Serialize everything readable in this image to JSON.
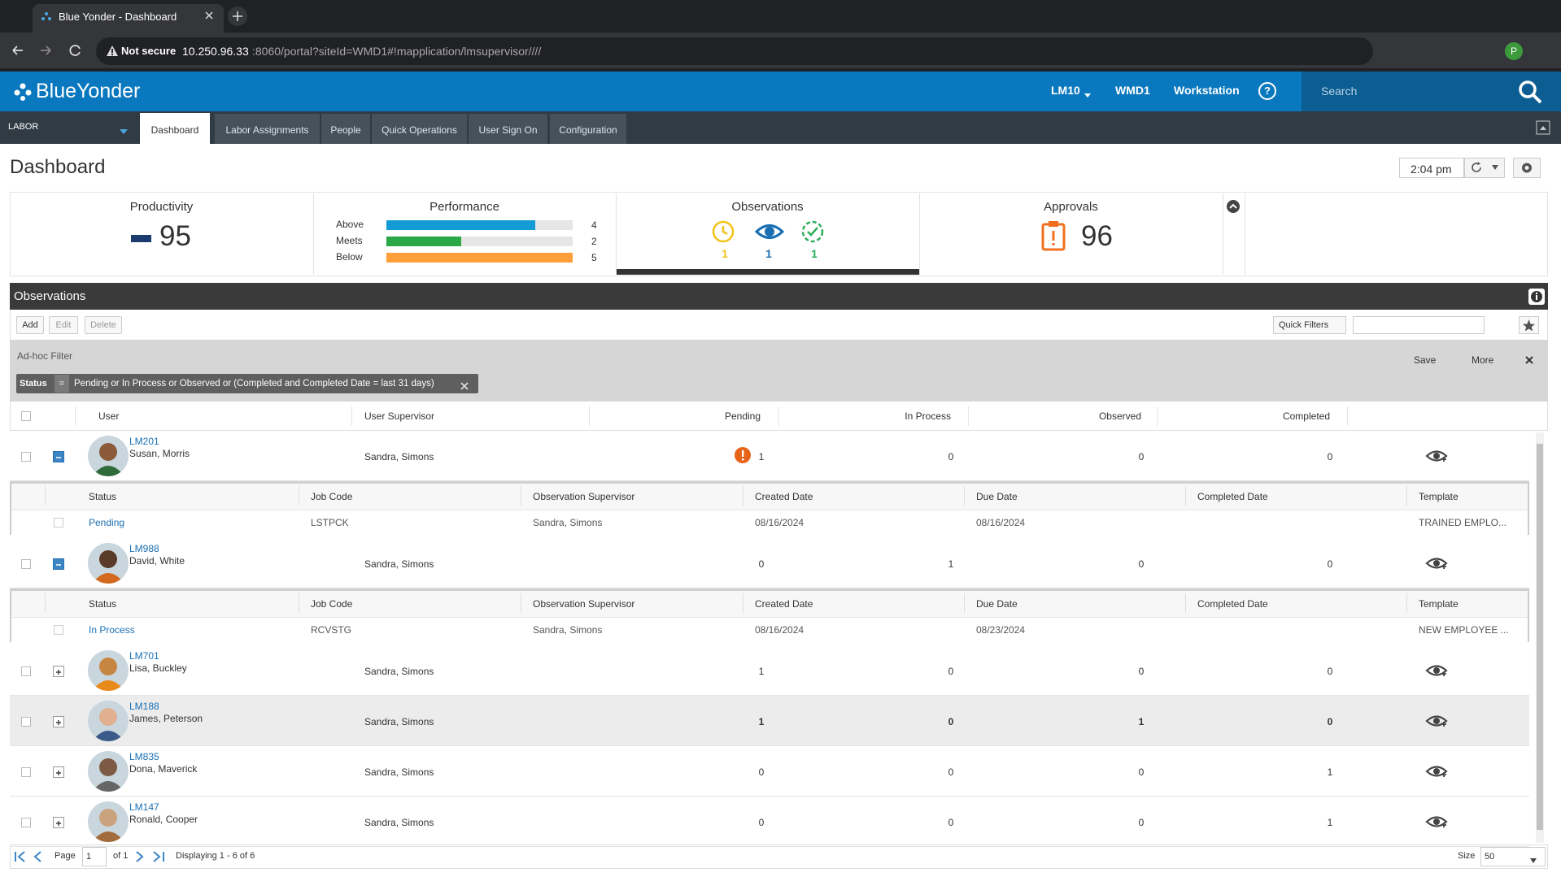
{
  "browser": {
    "tab_title": "Blue Yonder - Dashboard",
    "warning": "Not secure",
    "host": "10.250.96.33",
    "path": ":8060/portal?siteId=WMD1#!mapplication/lmsupervisor////",
    "profile": "P"
  },
  "header": {
    "logo": "BlueYonder",
    "menu": [
      "LM10",
      "WMD1",
      "Workstation"
    ],
    "help": "?",
    "search": "Search"
  },
  "nav": {
    "module": "LABOR",
    "tabs": [
      "Dashboard",
      "Labor Assignments",
      "People",
      "Quick Operations",
      "User Sign On",
      "Configuration"
    ]
  },
  "page_title": "Dashboard",
  "time": "2:04 pm",
  "widgets": {
    "productivity": {
      "title": "Productivity",
      "value": 95
    },
    "performance": {
      "title": "Performance",
      "rows": [
        {
          "label": "Above",
          "value": 4
        },
        {
          "label": "Meets",
          "value": 2
        },
        {
          "label": "Below",
          "value": 5
        }
      ]
    },
    "observations": {
      "title": "Observations",
      "counts": [
        1,
        1,
        1
      ]
    },
    "approvals": {
      "title": "Approvals",
      "value": 96
    }
  },
  "grid": {
    "title": "Observations",
    "buttons": [
      "Add",
      "Edit",
      "Delete"
    ],
    "quick_filters": "Quick Filters",
    "filter_label": "Ad-hoc Filter",
    "save": "Save",
    "more": "More",
    "chip": {
      "field": "Status",
      "op": "=",
      "value": "Pending or In Process or Observed or (Completed and Completed Date = last 31 days)"
    },
    "columns": [
      "User",
      "User Supervisor",
      "Pending",
      "In Process",
      "Observed",
      "Completed"
    ],
    "sub_columns": [
      "Status",
      "Job Code",
      "Observation Supervisor",
      "Created Date",
      "Due Date",
      "Completed Date",
      "Template"
    ],
    "rows": [
      {
        "id": "LM201",
        "name": "Susan, Morris",
        "supervisor": "Sandra, Simons",
        "pending": 1,
        "in_process": 0,
        "observed": 0,
        "completed": 0,
        "details": [
          [
            "Pending",
            "LSTPCK",
            "Sandra, Simons",
            "08/16/2024",
            "08/16/2024",
            "TRAINED EMPLO..."
          ]
        ]
      },
      {
        "id": "LM988",
        "name": "David, White",
        "supervisor": "Sandra, Simons",
        "pending": 0,
        "in_process": 1,
        "observed": 0,
        "completed": 0,
        "details": [
          [
            "In Process",
            "RCVSTG",
            "Sandra, Simons",
            "08/16/2024",
            "08/23/2024",
            "NEW EMPLOYEE ..."
          ]
        ]
      },
      {
        "id": "LM701",
        "name": "Lisa, Buckley",
        "supervisor": "Sandra, Simons",
        "pending": 1,
        "in_process": 0,
        "observed": 0,
        "completed": 0
      },
      {
        "id": "LM188",
        "name": "James, Peterson",
        "supervisor": "Sandra, Simons",
        "pending": 1,
        "in_process": 0,
        "observed": 1,
        "completed": 0
      },
      {
        "id": "LM835",
        "name": "Dona, Maverick",
        "supervisor": "Sandra, Simons",
        "pending": 0,
        "in_process": 0,
        "observed": 0,
        "completed": 1
      },
      {
        "id": "LM147",
        "name": "Ronald, Cooper",
        "supervisor": "Sandra, Simons",
        "pending": 0,
        "in_process": 0,
        "observed": 0,
        "completed": 1
      }
    ],
    "pager": {
      "page_label": "Page",
      "page": "1",
      "of": "of 1",
      "display": "Displaying 1 - 6 of 6",
      "size_label": "Size",
      "size": "50"
    }
  }
}
